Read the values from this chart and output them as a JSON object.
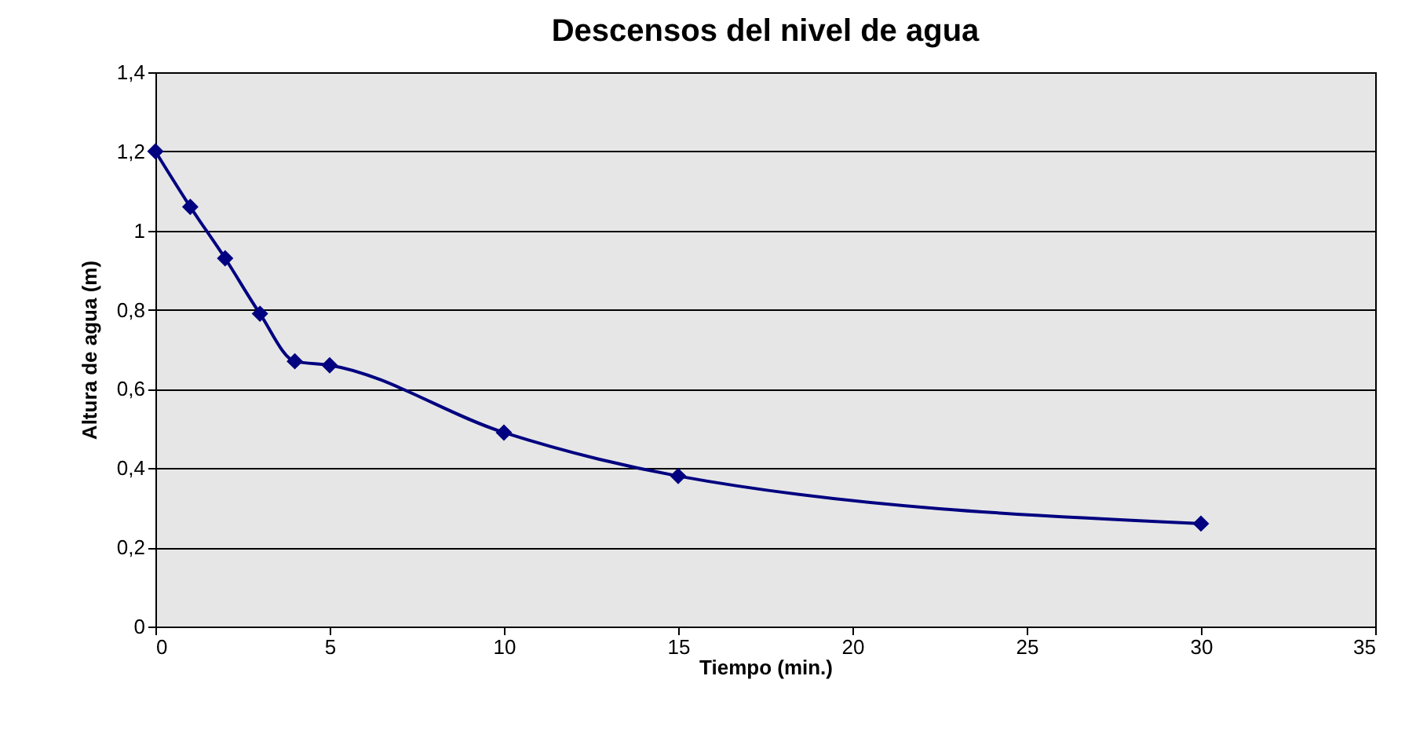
{
  "chart_data": {
    "type": "line",
    "title": "Descensos del nivel de agua",
    "xlabel": "Tiempo (min.)",
    "ylabel": "Altura de agua (m)",
    "x": [
      0,
      1,
      2,
      3,
      4,
      5,
      10,
      15,
      30
    ],
    "series": [
      {
        "color": "#000080",
        "values": [
          1.2,
          1.06,
          0.93,
          0.79,
          0.67,
          0.66,
          0.49,
          0.38,
          0.26
        ]
      }
    ],
    "xlim": [
      0,
      35
    ],
    "xticks": [
      0,
      5,
      10,
      15,
      20,
      25,
      30,
      35
    ],
    "ylim": [
      0,
      1.4
    ],
    "yticks": [
      {
        "value": 0,
        "label": "0"
      },
      {
        "value": 0.2,
        "label": "0,2"
      },
      {
        "value": 0.4,
        "label": "0,4"
      },
      {
        "value": 0.6,
        "label": "0,6"
      },
      {
        "value": 0.8,
        "label": "0,8"
      },
      {
        "value": 1,
        "label": "1"
      },
      {
        "value": 1.2,
        "label": "1,2"
      },
      {
        "value": 1.4,
        "label": "1,4"
      }
    ],
    "grid": "y",
    "marker": "diamond",
    "line_style": "solid"
  }
}
